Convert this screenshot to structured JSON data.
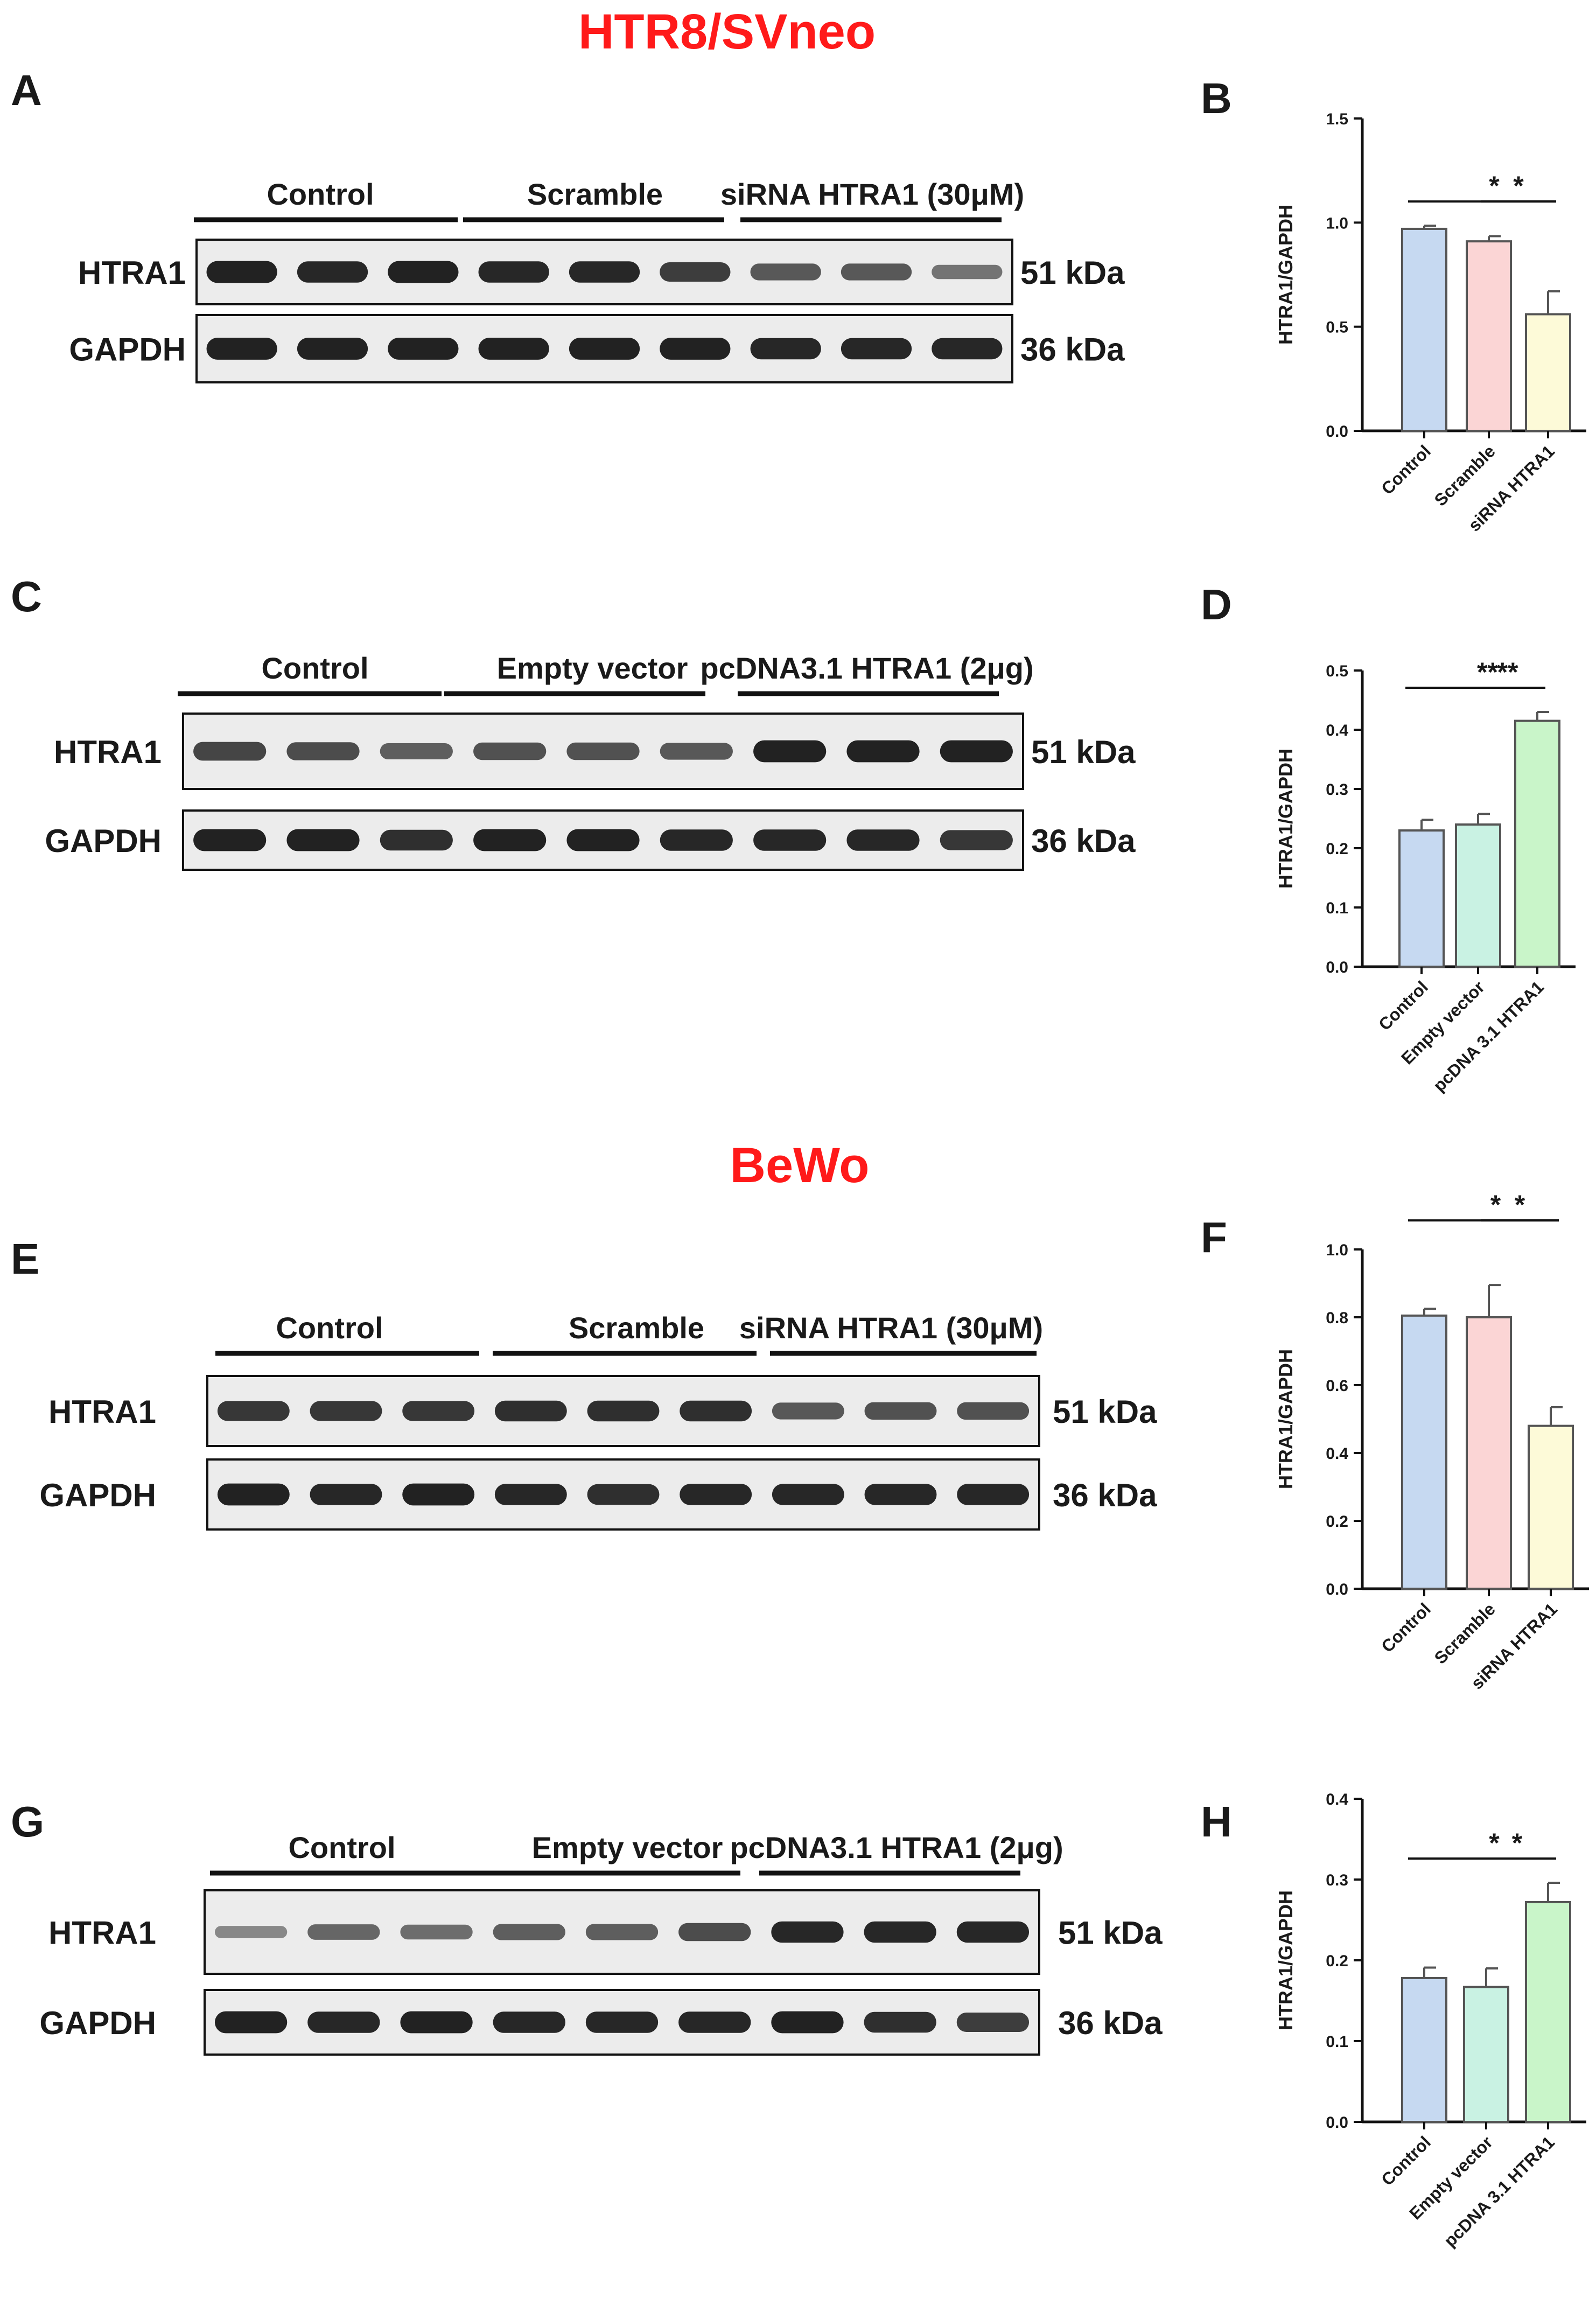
{
  "section_titles": [
    "HTR8/SVneo",
    "BeWo"
  ],
  "blots": [
    {
      "id": "A",
      "groups": [
        "Control",
        "Scramble",
        "siRNA HTRA1 (30μM)"
      ],
      "rows": [
        {
          "protein": "HTRA1",
          "kda": "51 kDa",
          "intensity": [
            0.95,
            0.9,
            0.95,
            0.9,
            0.9,
            0.75,
            0.55,
            0.55,
            0.35
          ]
        },
        {
          "protein": "GAPDH",
          "kda": "36 kDa",
          "intensity": [
            0.95,
            0.95,
            0.95,
            0.95,
            0.95,
            0.95,
            0.9,
            0.9,
            0.9
          ]
        }
      ]
    },
    {
      "id": "C",
      "groups": [
        "Control",
        "Empty vector",
        "pcDNA3.1 HTRA1 (2μg)"
      ],
      "rows": [
        {
          "protein": "HTRA1",
          "kda": "51 kDa",
          "intensity": [
            0.7,
            0.65,
            0.5,
            0.6,
            0.6,
            0.55,
            0.95,
            0.95,
            0.95
          ]
        },
        {
          "protein": "GAPDH",
          "kda": "36 kDa",
          "intensity": [
            0.95,
            0.95,
            0.85,
            0.95,
            0.95,
            0.9,
            0.9,
            0.9,
            0.8
          ]
        }
      ]
    },
    {
      "id": "E",
      "groups": [
        "Control",
        "Scramble",
        "siRNA HTRA1 (30μM)"
      ],
      "rows": [
        {
          "protein": "HTRA1",
          "kda": "51 kDa",
          "intensity": [
            0.8,
            0.8,
            0.8,
            0.85,
            0.85,
            0.85,
            0.55,
            0.6,
            0.6
          ]
        },
        {
          "protein": "GAPDH",
          "kda": "36 kDa",
          "intensity": [
            0.95,
            0.9,
            0.95,
            0.9,
            0.85,
            0.9,
            0.9,
            0.9,
            0.9
          ]
        }
      ]
    },
    {
      "id": "G",
      "groups": [
        "Control",
        "Empty vector",
        "pcDNA3.1 HTRA1 (2μg)"
      ],
      "rows": [
        {
          "protein": "HTRA1",
          "kda": "51 kDa",
          "intensity": [
            0.2,
            0.45,
            0.4,
            0.5,
            0.5,
            0.65,
            0.9,
            0.9,
            0.9
          ]
        },
        {
          "protein": "GAPDH",
          "kda": "36 kDa",
          "intensity": [
            0.95,
            0.9,
            0.95,
            0.9,
            0.9,
            0.9,
            0.95,
            0.85,
            0.75
          ]
        }
      ]
    }
  ],
  "chart_data": [
    {
      "id": "B",
      "type": "bar",
      "ylabel": "HTRA1/GAPDH",
      "categories": [
        "Control",
        "Scramble",
        "siRNA HTRA1"
      ],
      "values": [
        0.97,
        0.91,
        0.56
      ],
      "errors": [
        0.015,
        0.025,
        0.11
      ],
      "ylim": [
        0,
        1.5
      ],
      "yticks": [
        "0.0",
        "0.5",
        "1.0",
        "1.5"
      ],
      "colors": [
        "#c6d9f1",
        "#fbd5d5",
        "#fdfad8"
      ],
      "significance": [
        {
          "from": 1,
          "to": 2,
          "label": "*"
        },
        {
          "from": 0,
          "to": 2,
          "label": "*"
        }
      ]
    },
    {
      "id": "D",
      "type": "bar",
      "ylabel": "HTRA1/GAPDH",
      "categories": [
        "Control",
        "Empty vector",
        "pcDNA 3.1 HTRA1"
      ],
      "values": [
        0.23,
        0.24,
        0.415
      ],
      "errors": [
        0.018,
        0.018,
        0.015
      ],
      "ylim": [
        0,
        0.5
      ],
      "yticks": [
        "0.0",
        "0.1",
        "0.2",
        "0.3",
        "0.4",
        "0.5"
      ],
      "colors": [
        "#c6d9f1",
        "#c9f2e3",
        "#c9f5c9"
      ],
      "significance": [
        {
          "from": 1,
          "to": 2,
          "label": "**"
        },
        {
          "from": 0,
          "to": 2,
          "label": "**"
        }
      ]
    },
    {
      "id": "F",
      "type": "bar",
      "ylabel": "HTRA1/GAPDH",
      "categories": [
        "Control",
        "Scramble",
        "siRNA HTRA1"
      ],
      "values": [
        0.805,
        0.8,
        0.48
      ],
      "errors": [
        0.02,
        0.095,
        0.055
      ],
      "ylim": [
        0,
        1.0
      ],
      "yticks": [
        "0.0",
        "0.2",
        "0.4",
        "0.6",
        "0.8",
        "1.0"
      ],
      "colors": [
        "#c6d9f1",
        "#fbd5d5",
        "#fdfad8"
      ],
      "significance": [
        {
          "from": 0,
          "to": 2,
          "label": "*"
        },
        {
          "from": 1,
          "to": 2,
          "label": "*"
        }
      ]
    },
    {
      "id": "H",
      "type": "bar",
      "ylabel": "HTRA1/GAPDH",
      "categories": [
        "Control",
        "Empty vector",
        "pcDNA 3.1 HTRA1"
      ],
      "values": [
        0.178,
        0.167,
        0.272
      ],
      "errors": [
        0.013,
        0.023,
        0.024
      ],
      "ylim": [
        0,
        0.4
      ],
      "yticks": [
        "0.0",
        "0.1",
        "0.2",
        "0.3",
        "0.4"
      ],
      "colors": [
        "#c6d9f1",
        "#c9f2e3",
        "#c9f5c9"
      ],
      "significance": [
        {
          "from": 1,
          "to": 2,
          "label": "*"
        },
        {
          "from": 0,
          "to": 2,
          "label": "*"
        }
      ]
    }
  ]
}
